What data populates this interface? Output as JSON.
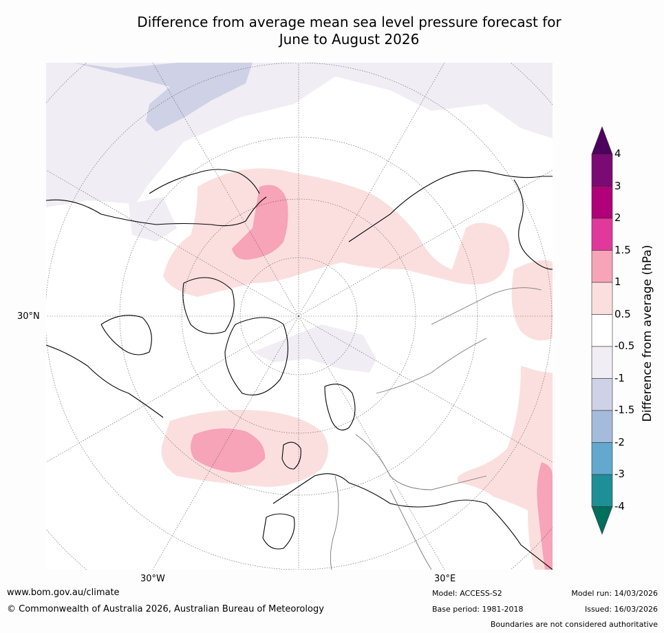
{
  "title": {
    "line1": "Difference from average mean sea level pressure forecast for",
    "line2": "June to August 2026"
  },
  "map": {
    "labels": {
      "lat30n": "30°N",
      "lon30w": "30°W",
      "lon30e": "30°E"
    },
    "colors": {
      "land_line": "#000000",
      "border_line": "#777777",
      "grid_line": "#555555"
    }
  },
  "colorbar": {
    "title": "Difference from average (hPa)",
    "ticks": [
      "4",
      "3",
      "2",
      "1.5",
      "1",
      "0.5",
      "-0.5",
      "-1",
      "-1.5",
      "-2",
      "-3",
      "-4"
    ],
    "colors": [
      "#4d005d",
      "#7c0a74",
      "#b0007a",
      "#e0399b",
      "#f7a3b8",
      "#fbdfdf",
      "#ffffff",
      "#f1edf4",
      "#cfd2e6",
      "#a5bbdc",
      "#63a8cf",
      "#1e8f96",
      "#006f5c"
    ]
  },
  "footer": {
    "website": "www.bom.gov.au/climate",
    "copyright": "© Commonwealth of Australia 2026, Australian Bureau of Meteorology",
    "model": "Model: ACCESS-S2",
    "base_period": "Base period: 1981-2018",
    "model_run": "Model run: 14/03/2026",
    "issued": "Issued: 16/03/2026",
    "disclaimer": "Boundaries are not considered authoritative"
  }
}
